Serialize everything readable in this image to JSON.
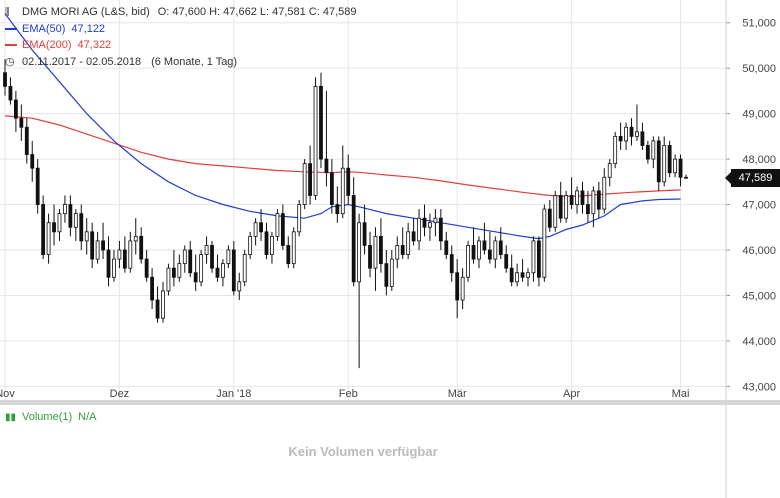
{
  "header": {
    "title": "DMG MORI AG (L&S, bid)",
    "ohlc": "O: 47,600  H: 47,662  L: 47,581  C: 47,589",
    "ema50_label": "EMA(50)",
    "ema50_value": "47,122",
    "ema200_label": "EMA(200)",
    "ema200_value": "47,322",
    "period": "02.11.2017 - 02.05.2018",
    "period_detail": "(6 Monate, 1 Tag)"
  },
  "colors": {
    "candle": "#111111",
    "ema50": "#1e3fd0",
    "ema200": "#e0403a",
    "grid": "#e6e6e6",
    "volume": "#2f9e3a"
  },
  "last_price": "47,589",
  "volume": {
    "label": "Volume(1)",
    "value": "N/A",
    "empty_text": "Kein Volumen verfügbar"
  },
  "chart_data": {
    "type": "candlestick",
    "title": "DMG MORI AG (L&S, bid)",
    "ylim": [
      42700,
      51500
    ],
    "yticks": [
      43000,
      44000,
      45000,
      46000,
      47000,
      48000,
      49000,
      50000,
      51000
    ],
    "ytick_labels": [
      "43,000",
      "44,000",
      "45,000",
      "46,000",
      "47,000",
      "48,000",
      "49,000",
      "50,000",
      "51,000"
    ],
    "xlim": [
      0,
      125
    ],
    "x_ticks": [
      {
        "x": 0,
        "label": "Nov"
      },
      {
        "x": 21,
        "label": "Dez"
      },
      {
        "x": 42,
        "label": "Jan '18"
      },
      {
        "x": 63,
        "label": "Feb"
      },
      {
        "x": 83,
        "label": "Mär"
      },
      {
        "x": 104,
        "label": "Apr"
      },
      {
        "x": 124,
        "label": "Mai"
      }
    ],
    "grid": true,
    "ohlc": [
      [
        49900,
        50200,
        49400,
        49600
      ],
      [
        49600,
        49800,
        49200,
        49300
      ],
      [
        49300,
        49500,
        48600,
        48900
      ],
      [
        48900,
        49200,
        48400,
        48700
      ],
      [
        48700,
        48900,
        47900,
        48100
      ],
      [
        48100,
        48400,
        47500,
        47800
      ],
      [
        47800,
        48000,
        46800,
        47000
      ],
      [
        47000,
        47200,
        45800,
        45900
      ],
      [
        45900,
        46800,
        45700,
        46600
      ],
      [
        46600,
        47000,
        46100,
        46400
      ],
      [
        46400,
        46900,
        46200,
        46800
      ],
      [
        46800,
        47200,
        46600,
        47000
      ],
      [
        47000,
        47200,
        46300,
        46500
      ],
      [
        46500,
        46900,
        46200,
        46800
      ],
      [
        46800,
        47000,
        46000,
        46200
      ],
      [
        46200,
        46700,
        45900,
        46400
      ],
      [
        46400,
        46600,
        45600,
        45800
      ],
      [
        45800,
        46400,
        45700,
        46200
      ],
      [
        46200,
        46600,
        45800,
        46000
      ],
      [
        46000,
        46300,
        45200,
        45400
      ],
      [
        45400,
        46000,
        45300,
        45800
      ],
      [
        45800,
        46200,
        45600,
        46000
      ],
      [
        46000,
        46300,
        45500,
        45600
      ],
      [
        45600,
        46400,
        45500,
        46200
      ],
      [
        46200,
        46700,
        45900,
        46300
      ],
      [
        46300,
        46500,
        45700,
        45800
      ],
      [
        45800,
        46000,
        45300,
        45400
      ],
      [
        45400,
        45600,
        44700,
        44900
      ],
      [
        44900,
        45200,
        44400,
        44500
      ],
      [
        44500,
        45300,
        44400,
        45100
      ],
      [
        45100,
        45700,
        45000,
        45600
      ],
      [
        45600,
        46000,
        45200,
        45400
      ],
      [
        45400,
        45900,
        45300,
        45700
      ],
      [
        45700,
        46100,
        45500,
        46000
      ],
      [
        46000,
        46200,
        45400,
        45500
      ],
      [
        45500,
        45900,
        45100,
        45300
      ],
      [
        45300,
        46000,
        45200,
        45900
      ],
      [
        45900,
        46300,
        45700,
        46100
      ],
      [
        46100,
        46200,
        45500,
        45600
      ],
      [
        45600,
        45900,
        45300,
        45400
      ],
      [
        45400,
        45800,
        45200,
        45700
      ],
      [
        45700,
        46100,
        45600,
        46000
      ],
      [
        46000,
        46200,
        45000,
        45100
      ],
      [
        45100,
        45500,
        44900,
        45300
      ],
      [
        45300,
        46000,
        45200,
        45900
      ],
      [
        45900,
        46400,
        45800,
        46300
      ],
      [
        46300,
        46700,
        46100,
        46600
      ],
      [
        46600,
        46900,
        46200,
        46400
      ],
      [
        46400,
        46600,
        45800,
        45900
      ],
      [
        45900,
        46400,
        45700,
        46300
      ],
      [
        46300,
        46900,
        46200,
        46800
      ],
      [
        46800,
        47000,
        46000,
        46100
      ],
      [
        46100,
        46300,
        45600,
        45700
      ],
      [
        45700,
        46500,
        45600,
        46400
      ],
      [
        46400,
        47100,
        46300,
        47000
      ],
      [
        47000,
        48000,
        46900,
        47900
      ],
      [
        47900,
        48300,
        47000,
        47200
      ],
      [
        47200,
        49800,
        47100,
        49600
      ],
      [
        49600,
        49900,
        47800,
        48000
      ],
      [
        48000,
        49500,
        47400,
        47700
      ],
      [
        47700,
        48000,
        46800,
        47000
      ],
      [
        47000,
        47400,
        46600,
        46800
      ],
      [
        46800,
        48300,
        46700,
        47800
      ],
      [
        47800,
        48100,
        47000,
        47200
      ],
      [
        47200,
        47600,
        45200,
        45300
      ],
      [
        45300,
        46800,
        43400,
        46600
      ],
      [
        46600,
        47000,
        45900,
        46100
      ],
      [
        46100,
        46400,
        45400,
        45600
      ],
      [
        45600,
        46500,
        45100,
        46300
      ],
      [
        46300,
        46700,
        45500,
        45700
      ],
      [
        45700,
        46000,
        45000,
        45200
      ],
      [
        45200,
        46000,
        45100,
        45800
      ],
      [
        45800,
        46300,
        45600,
        46100
      ],
      [
        46100,
        46500,
        45800,
        45900
      ],
      [
        45900,
        46600,
        45800,
        46400
      ],
      [
        46400,
        46700,
        46100,
        46200
      ],
      [
        46200,
        46900,
        46000,
        46700
      ],
      [
        46700,
        47000,
        46300,
        46500
      ],
      [
        46500,
        46800,
        46200,
        46600
      ],
      [
        46600,
        46900,
        46300,
        46700
      ],
      [
        46700,
        46900,
        46000,
        46200
      ],
      [
        46200,
        46400,
        45800,
        45900
      ],
      [
        45900,
        46100,
        45300,
        45500
      ],
      [
        45500,
        45800,
        44500,
        44900
      ],
      [
        44900,
        45600,
        44700,
        45400
      ],
      [
        45400,
        46200,
        45300,
        46100
      ],
      [
        46100,
        46500,
        45700,
        45800
      ],
      [
        45800,
        46300,
        45600,
        46200
      ],
      [
        46200,
        46600,
        45900,
        46000
      ],
      [
        46000,
        46400,
        45700,
        45800
      ],
      [
        45800,
        46300,
        45600,
        46200
      ],
      [
        46200,
        46500,
        45800,
        45900
      ],
      [
        45900,
        46100,
        45500,
        45600
      ],
      [
        45600,
        45900,
        45200,
        45300
      ],
      [
        45300,
        45700,
        45200,
        45500
      ],
      [
        45500,
        45800,
        45300,
        45400
      ],
      [
        45400,
        45600,
        45200,
        45500
      ],
      [
        45500,
        46300,
        45300,
        46200
      ],
      [
        46200,
        46300,
        45200,
        45400
      ],
      [
        45400,
        47000,
        45300,
        46900
      ],
      [
        46900,
        47100,
        46400,
        46500
      ],
      [
        46500,
        47300,
        46400,
        47200
      ],
      [
        47200,
        47500,
        46600,
        46700
      ],
      [
        46700,
        47300,
        46600,
        47200
      ],
      [
        47200,
        47600,
        46900,
        47000
      ],
      [
        47000,
        47400,
        46800,
        47300
      ],
      [
        47300,
        47500,
        46800,
        47000
      ],
      [
        47000,
        47300,
        46600,
        46800
      ],
      [
        46800,
        47400,
        46500,
        47300
      ],
      [
        47300,
        47500,
        46700,
        46900
      ],
      [
        46900,
        47800,
        46800,
        47600
      ],
      [
        47600,
        48000,
        47400,
        47900
      ],
      [
        47900,
        48600,
        47800,
        48500
      ],
      [
        48500,
        48800,
        48200,
        48400
      ],
      [
        48400,
        48800,
        48200,
        48700
      ],
      [
        48700,
        48900,
        48300,
        48500
      ],
      [
        48500,
        49200,
        48400,
        48600
      ],
      [
        48600,
        48800,
        48200,
        48300
      ],
      [
        48300,
        48400,
        47900,
        48000
      ],
      [
        48000,
        48500,
        47800,
        48400
      ],
      [
        48400,
        48500,
        47300,
        47500
      ],
      [
        47500,
        48500,
        47400,
        48300
      ],
      [
        48300,
        48400,
        47600,
        47700
      ],
      [
        47700,
        48100,
        47600,
        48000
      ],
      [
        48000,
        48100,
        47400,
        47600
      ],
      [
        47600,
        47662,
        47581,
        47589
      ]
    ],
    "series": [
      {
        "name": "EMA(50)",
        "color": "#1e3fd0",
        "points": [
          [
            0,
            51200
          ],
          [
            5,
            50400
          ],
          [
            10,
            49700
          ],
          [
            15,
            49000
          ],
          [
            20,
            48400
          ],
          [
            25,
            47900
          ],
          [
            30,
            47500
          ],
          [
            35,
            47200
          ],
          [
            40,
            47000
          ],
          [
            45,
            46850
          ],
          [
            50,
            46750
          ],
          [
            55,
            46700
          ],
          [
            58,
            46800
          ],
          [
            60,
            46950
          ],
          [
            63,
            47000
          ],
          [
            65,
            46950
          ],
          [
            70,
            46800
          ],
          [
            75,
            46700
          ],
          [
            80,
            46600
          ],
          [
            85,
            46500
          ],
          [
            90,
            46400
          ],
          [
            95,
            46300
          ],
          [
            98,
            46250
          ],
          [
            100,
            46300
          ],
          [
            103,
            46450
          ],
          [
            106,
            46550
          ],
          [
            110,
            46750
          ],
          [
            113,
            47000
          ],
          [
            117,
            47080
          ],
          [
            120,
            47110
          ],
          [
            124,
            47122
          ]
        ]
      },
      {
        "name": "EMA(200)",
        "color": "#e0403a",
        "points": [
          [
            0,
            48950
          ],
          [
            5,
            48900
          ],
          [
            10,
            48750
          ],
          [
            15,
            48550
          ],
          [
            20,
            48350
          ],
          [
            25,
            48150
          ],
          [
            30,
            48000
          ],
          [
            35,
            47900
          ],
          [
            40,
            47850
          ],
          [
            45,
            47800
          ],
          [
            50,
            47750
          ],
          [
            55,
            47720
          ],
          [
            60,
            47700
          ],
          [
            63,
            47720
          ],
          [
            65,
            47710
          ],
          [
            70,
            47650
          ],
          [
            75,
            47600
          ],
          [
            80,
            47520
          ],
          [
            85,
            47430
          ],
          [
            90,
            47350
          ],
          [
            95,
            47270
          ],
          [
            100,
            47200
          ],
          [
            103,
            47180
          ],
          [
            106,
            47190
          ],
          [
            110,
            47230
          ],
          [
            115,
            47270
          ],
          [
            120,
            47300
          ],
          [
            124,
            47322
          ]
        ]
      }
    ]
  }
}
